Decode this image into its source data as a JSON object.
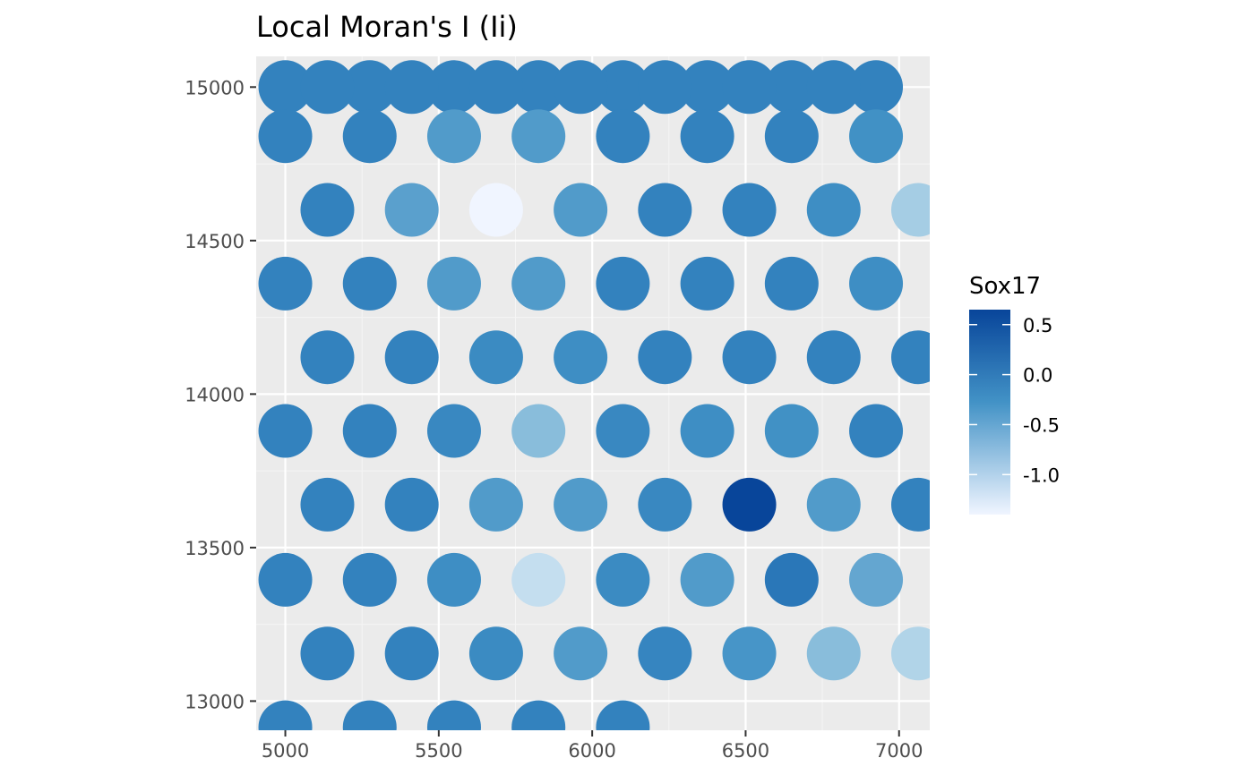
{
  "chart_data": {
    "type": "scatter",
    "title": "Local Moran's I (Ii)",
    "xlabel": "",
    "ylabel": "",
    "xlim": [
      4905,
      7100
    ],
    "ylim": [
      12905,
      15100
    ],
    "x_ticks": [
      5000,
      5500,
      6000,
      6500,
      7000
    ],
    "y_ticks": [
      13000,
      13500,
      14000,
      14500,
      15000
    ],
    "x_tick_labels": [
      "5000",
      "5500",
      "6000",
      "6500",
      "7000"
    ],
    "y_tick_labels": [
      "13000",
      "13500",
      "14000",
      "14500",
      "15000"
    ],
    "grid": true,
    "panel_background": "#ebebeb",
    "legend": {
      "title": "Sox17",
      "placement": "right",
      "min": -1.4,
      "max": 0.65,
      "ticks": [
        0.5,
        0.0,
        -0.5,
        -1.0
      ],
      "tick_labels": [
        "0.5",
        "0.0",
        "-0.5",
        "-1.0"
      ],
      "low_color": "#f0f5ff",
      "high_color": "#08459a"
    },
    "points": [
      {
        "x": 5000,
        "y": 15000,
        "v": 0.0
      },
      {
        "x": 5275,
        "y": 15000,
        "v": 0.0
      },
      {
        "x": 5550,
        "y": 15000,
        "v": 0.0
      },
      {
        "x": 5825,
        "y": 15000,
        "v": 0.0
      },
      {
        "x": 6100,
        "y": 15000,
        "v": 0.0
      },
      {
        "x": 6375,
        "y": 15000,
        "v": 0.0
      },
      {
        "x": 6650,
        "y": 15000,
        "v": 0.0
      },
      {
        "x": 6925,
        "y": 15000,
        "v": 0.0
      },
      {
        "x": 5137,
        "y": 15000,
        "v": 0.0
      },
      {
        "x": 5412,
        "y": 15000,
        "v": 0.0
      },
      {
        "x": 5687,
        "y": 15000,
        "v": 0.0
      },
      {
        "x": 5962,
        "y": 15000,
        "v": 0.0
      },
      {
        "x": 6237,
        "y": 15000,
        "v": 0.0
      },
      {
        "x": 6512,
        "y": 15000,
        "v": 0.0
      },
      {
        "x": 6787,
        "y": 15000,
        "v": 0.0
      },
      {
        "x": 5000,
        "y": 14840,
        "v": 0.0
      },
      {
        "x": 5275,
        "y": 14840,
        "v": 0.0
      },
      {
        "x": 5550,
        "y": 14840,
        "v": -0.35
      },
      {
        "x": 5825,
        "y": 14840,
        "v": -0.35
      },
      {
        "x": 6100,
        "y": 14840,
        "v": 0.0
      },
      {
        "x": 6375,
        "y": 14840,
        "v": 0.0
      },
      {
        "x": 6650,
        "y": 14840,
        "v": 0.0
      },
      {
        "x": 6925,
        "y": 14840,
        "v": -0.25
      },
      {
        "x": 5137,
        "y": 14600,
        "v": 0.0
      },
      {
        "x": 5412,
        "y": 14600,
        "v": -0.4
      },
      {
        "x": 5687,
        "y": 14600,
        "v": -1.4
      },
      {
        "x": 5962,
        "y": 14600,
        "v": -0.35
      },
      {
        "x": 6237,
        "y": 14600,
        "v": 0.0
      },
      {
        "x": 6512,
        "y": 14600,
        "v": 0.0
      },
      {
        "x": 6787,
        "y": 14600,
        "v": -0.2
      },
      {
        "x": 7062,
        "y": 14600,
        "v": -0.8
      },
      {
        "x": 5000,
        "y": 14360,
        "v": 0.0
      },
      {
        "x": 5275,
        "y": 14360,
        "v": 0.0
      },
      {
        "x": 5550,
        "y": 14360,
        "v": -0.35
      },
      {
        "x": 5825,
        "y": 14360,
        "v": -0.35
      },
      {
        "x": 6100,
        "y": 14360,
        "v": 0.0
      },
      {
        "x": 6375,
        "y": 14360,
        "v": 0.0
      },
      {
        "x": 6650,
        "y": 14360,
        "v": 0.0
      },
      {
        "x": 6925,
        "y": 14360,
        "v": -0.2
      },
      {
        "x": 5137,
        "y": 14120,
        "v": 0.0
      },
      {
        "x": 5412,
        "y": 14120,
        "v": 0.0
      },
      {
        "x": 5687,
        "y": 14120,
        "v": -0.15
      },
      {
        "x": 5962,
        "y": 14120,
        "v": -0.2
      },
      {
        "x": 6237,
        "y": 14120,
        "v": 0.0
      },
      {
        "x": 6512,
        "y": 14120,
        "v": 0.0
      },
      {
        "x": 6787,
        "y": 14120,
        "v": 0.0
      },
      {
        "x": 7062,
        "y": 14120,
        "v": 0.0
      },
      {
        "x": 5000,
        "y": 13880,
        "v": 0.0
      },
      {
        "x": 5275,
        "y": 13880,
        "v": 0.0
      },
      {
        "x": 5550,
        "y": 13880,
        "v": -0.1
      },
      {
        "x": 5825,
        "y": 13880,
        "v": -0.65
      },
      {
        "x": 6100,
        "y": 13880,
        "v": -0.1
      },
      {
        "x": 6375,
        "y": 13880,
        "v": -0.2
      },
      {
        "x": 6650,
        "y": 13880,
        "v": -0.25
      },
      {
        "x": 6925,
        "y": 13880,
        "v": 0.0
      },
      {
        "x": 5137,
        "y": 13640,
        "v": 0.0
      },
      {
        "x": 5412,
        "y": 13640,
        "v": 0.0
      },
      {
        "x": 5687,
        "y": 13640,
        "v": -0.35
      },
      {
        "x": 5962,
        "y": 13640,
        "v": -0.35
      },
      {
        "x": 6237,
        "y": 13640,
        "v": -0.1
      },
      {
        "x": 6512,
        "y": 13640,
        "v": 0.65
      },
      {
        "x": 6787,
        "y": 13640,
        "v": -0.35
      },
      {
        "x": 7062,
        "y": 13640,
        "v": 0.0
      },
      {
        "x": 5000,
        "y": 13395,
        "v": 0.0
      },
      {
        "x": 5275,
        "y": 13395,
        "v": 0.0
      },
      {
        "x": 5550,
        "y": 13395,
        "v": -0.2
      },
      {
        "x": 5825,
        "y": 13395,
        "v": -1.05
      },
      {
        "x": 6100,
        "y": 13395,
        "v": -0.15
      },
      {
        "x": 6375,
        "y": 13395,
        "v": -0.35
      },
      {
        "x": 6650,
        "y": 13395,
        "v": 0.15
      },
      {
        "x": 6925,
        "y": 13395,
        "v": -0.45
      },
      {
        "x": 5137,
        "y": 13155,
        "v": 0.0
      },
      {
        "x": 5412,
        "y": 13155,
        "v": 0.0
      },
      {
        "x": 5687,
        "y": 13155,
        "v": -0.15
      },
      {
        "x": 5962,
        "y": 13155,
        "v": -0.35
      },
      {
        "x": 6237,
        "y": 13155,
        "v": -0.05
      },
      {
        "x": 6512,
        "y": 13155,
        "v": -0.3
      },
      {
        "x": 6787,
        "y": 13155,
        "v": -0.65
      },
      {
        "x": 7062,
        "y": 13155,
        "v": -0.9
      },
      {
        "x": 5000,
        "y": 12915,
        "v": 0.0
      },
      {
        "x": 5275,
        "y": 12915,
        "v": 0.0
      },
      {
        "x": 5550,
        "y": 12915,
        "v": 0.0
      },
      {
        "x": 5825,
        "y": 12915,
        "v": 0.0
      },
      {
        "x": 6100,
        "y": 12915,
        "v": 0.0
      }
    ]
  }
}
